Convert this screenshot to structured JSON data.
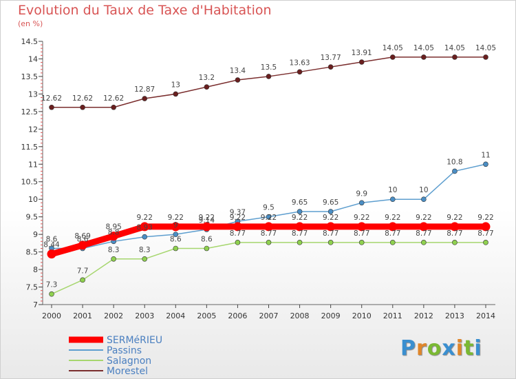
{
  "page": {
    "title": "Evolution du Taux de Taxe d'Habitation",
    "unit": "(en %)"
  },
  "logo": {
    "text": "Proxiti",
    "colors": [
      "#3a8fd0",
      "#e0862a",
      "#7ab833",
      "#3a8fd0",
      "#e0862a",
      "#7ab833",
      "#3a8fd0"
    ]
  },
  "chart_data": {
    "type": "line",
    "x": [
      2000,
      2001,
      2002,
      2003,
      2004,
      2005,
      2006,
      2007,
      2008,
      2009,
      2010,
      2011,
      2012,
      2013,
      2014
    ],
    "ylim": [
      7,
      14.5
    ],
    "yticks": [
      7,
      7.5,
      8,
      8.5,
      9,
      9.5,
      10,
      10.5,
      11,
      11.5,
      12,
      12.5,
      13,
      13.5,
      14,
      14.5
    ],
    "ytick_labels": [
      "7",
      "7.5",
      "8",
      "8.5",
      "9",
      "9.5",
      "10",
      "10.5",
      "11",
      "11.5",
      "12",
      "12.5",
      "13",
      "13.5",
      "14",
      "14.5"
    ],
    "grid": false,
    "legend_position": "bottom-left",
    "series": [
      {
        "name": "SERMéRIEU",
        "color": "#ff0000",
        "values": [
          8.44,
          8.69,
          8.95,
          9.22,
          9.22,
          9.22,
          9.22,
          9.22,
          9.22,
          9.22,
          9.22,
          9.22,
          9.22,
          9.22,
          9.22
        ],
        "labels": [
          "8.44",
          "8.69",
          "8.95",
          "9.22",
          "9.22",
          "9.22",
          "9.22",
          "9.22",
          "9.22",
          "9.22",
          "9.22",
          "9.22",
          "9.22",
          "9.22",
          "9.22"
        ]
      },
      {
        "name": "Passins",
        "color": "#5d9ecf",
        "values": [
          8.6,
          8.6,
          8.8,
          8.93,
          9.0,
          9.14,
          9.37,
          9.5,
          9.65,
          9.65,
          9.9,
          10,
          10,
          10.8,
          11
        ],
        "labels": [
          "8.6",
          "8.6",
          "8.8",
          "8.93",
          "9",
          "9.14",
          "9.37",
          "9.5",
          "9.65",
          "9.65",
          "9.9",
          "10",
          "10",
          "10.8",
          "11"
        ]
      },
      {
        "name": "Salagnon",
        "color": "#a6d66e",
        "values": [
          7.3,
          7.7,
          8.3,
          8.3,
          8.6,
          8.6,
          8.77,
          8.77,
          8.77,
          8.77,
          8.77,
          8.77,
          8.77,
          8.77,
          8.77
        ],
        "labels": [
          "7.3",
          "7.7",
          "8.3",
          "8.3",
          "8.6",
          "8.6",
          "8.77",
          "8.77",
          "8.77",
          "8.77",
          "8.77",
          "8.77",
          "8.77",
          "8.77",
          "8.77"
        ]
      },
      {
        "name": "Morestel",
        "color": "#7a2d2d",
        "values": [
          12.62,
          12.62,
          12.62,
          12.87,
          13,
          13.2,
          13.4,
          13.5,
          13.63,
          13.77,
          13.91,
          14.05,
          14.05,
          14.05,
          14.05
        ],
        "labels": [
          "12.62",
          "12.62",
          "12.62",
          "12.87",
          "13",
          "13.2",
          "13.4",
          "13.5",
          "13.63",
          "13.77",
          "13.91",
          "14.05",
          "14.05",
          "14.05",
          "14.05"
        ]
      }
    ]
  }
}
